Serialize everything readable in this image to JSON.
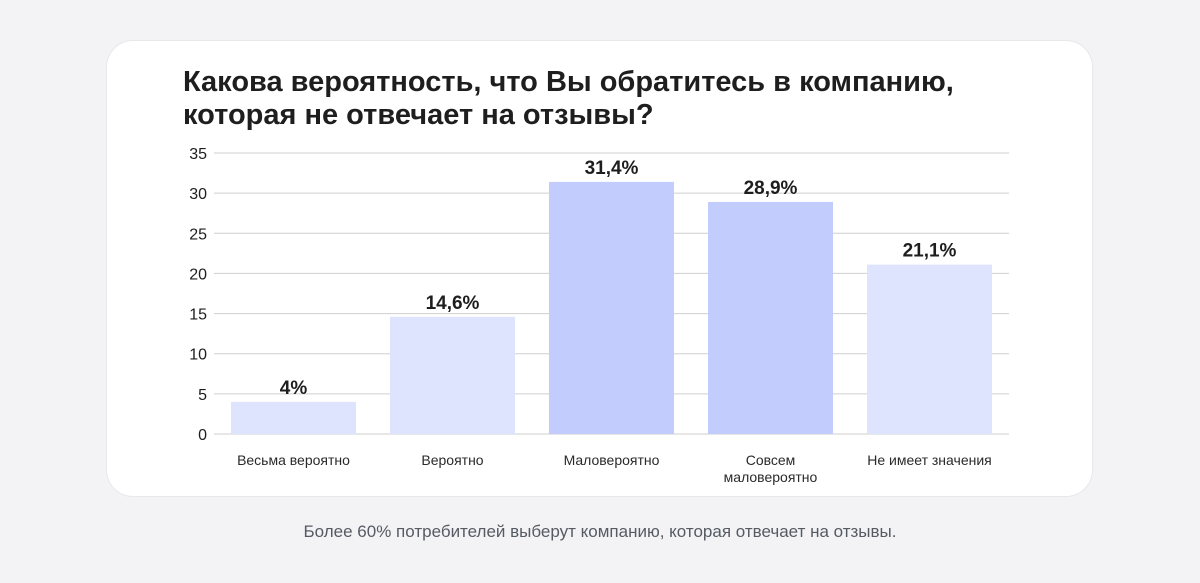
{
  "title_lines": [
    "Какова вероятность, что Вы обратитесь в компанию,",
    "которая не отвечает на отзывы?"
  ],
  "caption": "Более 60% потребителей выберут компанию, которая отвечает на отзывы.",
  "colors": {
    "bar_light": "#dfe4fe",
    "bar_accent": "#c3cdfd",
    "grid": "#cfcfcf",
    "text": "#1e1e1e"
  },
  "chart_data": {
    "type": "bar",
    "categories": [
      [
        "Весьма вероятно"
      ],
      [
        "Вероятно"
      ],
      [
        "Маловероятно"
      ],
      [
        "Совсем",
        "маловероятно"
      ],
      [
        "Не имеет значения"
      ]
    ],
    "values": [
      4,
      14.6,
      31.4,
      28.9,
      21.1
    ],
    "value_labels": [
      "4%",
      "14,6%",
      "31,4%",
      "28,9%",
      "21,1%"
    ],
    "highlighted": [
      false,
      false,
      true,
      true,
      false
    ],
    "ylim": [
      0,
      35
    ],
    "yticks": [
      0,
      5,
      10,
      15,
      20,
      25,
      30,
      35
    ],
    "grid": true
  }
}
